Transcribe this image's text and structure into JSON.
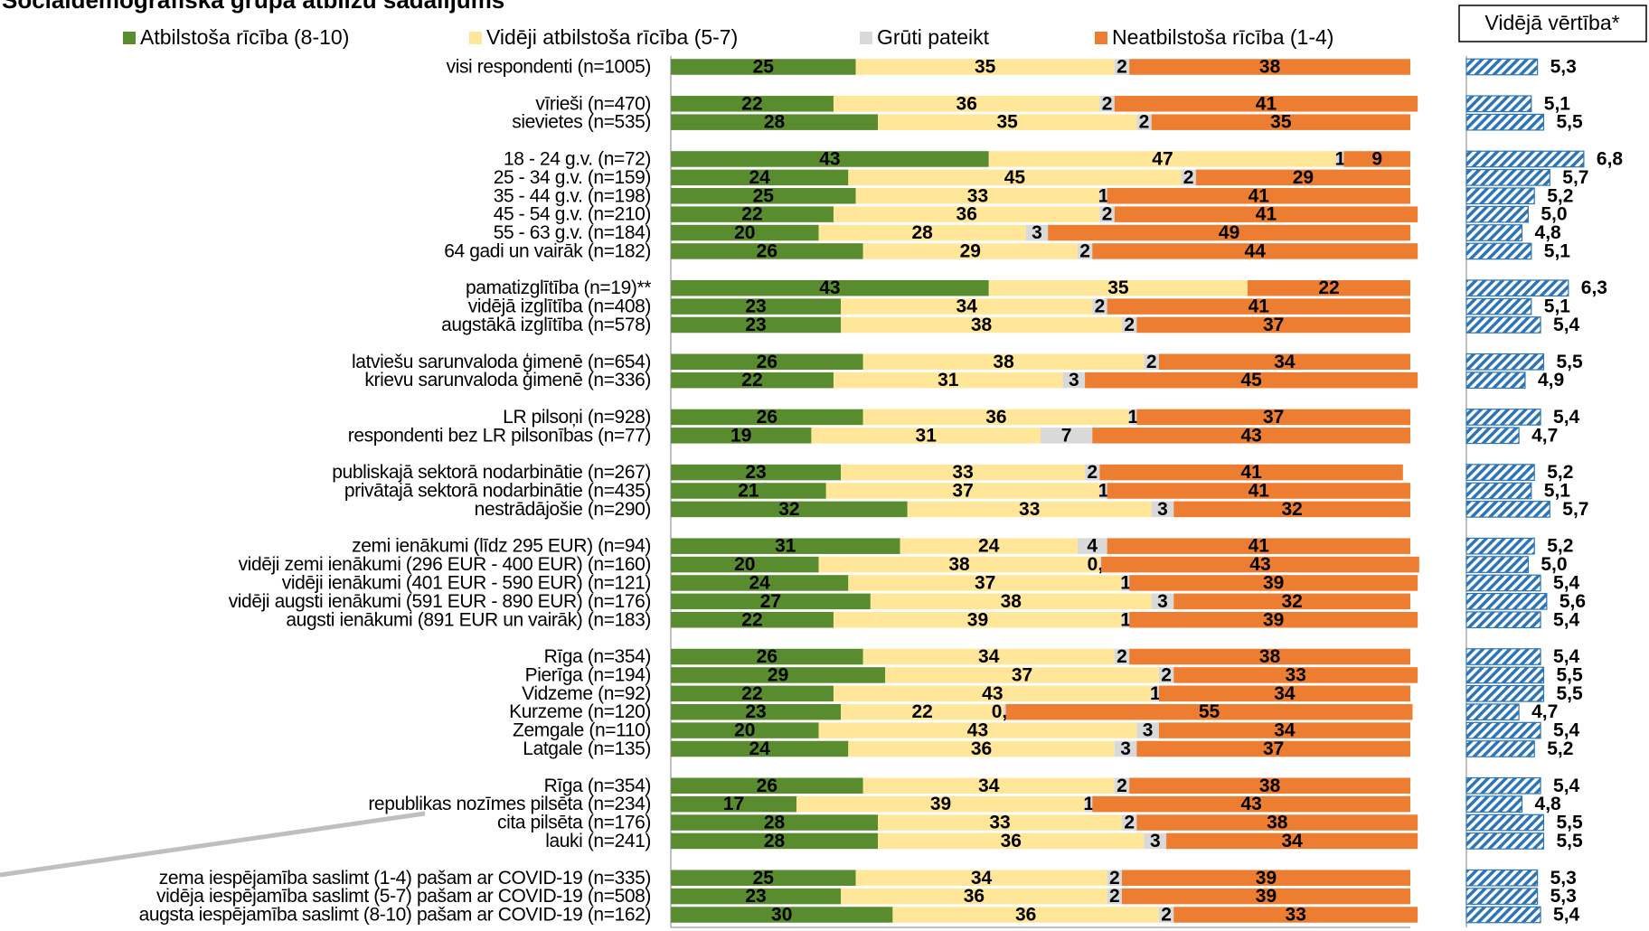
{
  "chart_data": [
    {
      "type": "stacked-bar",
      "orientation": "horizontal",
      "title": "Sociāldemogrāfiskā grupā atbilžu sadalījums",
      "categories": [
        "visi respondenti (n=1005)",
        null,
        "vīrieši (n=470)",
        "sievietes (n=535)",
        null,
        "18 - 24 g.v. (n=72)",
        "25 - 34 g.v. (n=159)",
        "35 - 44 g.v. (n=198)",
        "45 - 54 g.v. (n=210)",
        "55 - 63 g.v. (n=184)",
        "64 gadi un vairāk (n=182)",
        null,
        "pamatizglītība (n=19)**",
        "vidējā izglītība (n=408)",
        "augstākā izglītība (n=578)",
        null,
        "latviešu sarunvaloda ģimenē (n=654)",
        "krievu sarunvaloda ģimenē (n=336)",
        null,
        "LR pilsoņi (n=928)",
        "respondenti bez LR pilsonības (n=77)",
        null,
        "publiskajā sektorā nodarbinātie (n=267)",
        "privātajā sektorā nodarbinātie (n=435)",
        "nestrādājošie (n=290)",
        null,
        "zemi ienākumi (līdz 295 EUR) (n=94)",
        "vidēji zemi ienākumi (296 EUR - 400 EUR) (n=160)",
        "vidēji ienākumi (401 EUR - 590 EUR) (n=121)",
        "vidēji augsti ienākumi (591 EUR - 890 EUR) (n=176)",
        "augsti ienākumi (891 EUR un vairāk) (n=183)",
        null,
        "Rīga (n=354)",
        "Pierīga (n=194)",
        "Vidzeme (n=92)",
        "Kurzeme (n=120)",
        "Zemgale (n=110)",
        "Latgale (n=135)",
        null,
        "Rīga (n=354)",
        "republikas nozīmes pilsēta (n=234)",
        "cita pilsēta (n=176)",
        "lauki (n=241)",
        null,
        "zema iespējamība saslimt (1-4) pašam ar COVID-19 (n=335)",
        "vidēja iespējamība saslimt (5-7) pašam ar COVID-19 (n=508)",
        "augsta iespējamība saslimt (8-10) pašam ar COVID-19 (n=162)"
      ],
      "xlim": [
        0,
        100
      ],
      "series": [
        {
          "name": "Atbilstoša rīcība (8-10)",
          "color": "#588c2e",
          "label_color": "#ffffff",
          "values": [
            25,
            null,
            22,
            28,
            null,
            43,
            24,
            25,
            22,
            20,
            26,
            null,
            43,
            23,
            23,
            null,
            26,
            22,
            null,
            26,
            19,
            null,
            23,
            21,
            32,
            null,
            31,
            20,
            24,
            27,
            22,
            null,
            26,
            29,
            22,
            23,
            20,
            24,
            null,
            26,
            17,
            28,
            28,
            null,
            25,
            23,
            30
          ]
        },
        {
          "name": "Vidēji atbilstoša rīcība (5-7)",
          "color": "#ffe699",
          "label_color": "#000000",
          "values": [
            35,
            null,
            36,
            35,
            null,
            47,
            45,
            33,
            36,
            28,
            29,
            null,
            35,
            34,
            38,
            null,
            38,
            31,
            null,
            36,
            31,
            null,
            33,
            37,
            33,
            null,
            24,
            38,
            37,
            38,
            39,
            null,
            34,
            37,
            43,
            22,
            43,
            36,
            null,
            34,
            39,
            33,
            36,
            null,
            34,
            36,
            36
          ]
        },
        {
          "name": "Grūti pateikt",
          "color": "#d9d9d9",
          "label_color": "#000000",
          "values": [
            2,
            null,
            2,
            2,
            null,
            1,
            2,
            1,
            2,
            3,
            2,
            null,
            null,
            2,
            2,
            null,
            2,
            3,
            null,
            1,
            7,
            null,
            2,
            1,
            3,
            null,
            4,
            0.2,
            1,
            3,
            1,
            null,
            2,
            2,
            1,
            0.3,
            3,
            3,
            null,
            2,
            1,
            2,
            3,
            null,
            2,
            2,
            2
          ],
          "value_labels": [
            "2",
            null,
            "2",
            "2",
            null,
            "1",
            "2",
            "1",
            "2",
            "3",
            "2",
            null,
            null,
            "2",
            "2",
            null,
            "2",
            "3",
            null,
            "1",
            "7",
            null,
            "2",
            "1",
            "3",
            null,
            "4",
            "0,2",
            "1",
            "3",
            "1",
            null,
            "2",
            "2",
            "1",
            "0,3",
            "3",
            "3",
            null,
            "2",
            "1",
            "2",
            "3",
            null,
            "2",
            "2",
            "2"
          ]
        },
        {
          "name": "Neatbilstoša rīcība (1-4)",
          "color": "#ed7d31",
          "label_color": "#000000",
          "values": [
            38,
            null,
            41,
            35,
            null,
            9,
            29,
            41,
            41,
            49,
            44,
            null,
            22,
            41,
            37,
            null,
            34,
            45,
            null,
            37,
            43,
            null,
            41,
            41,
            32,
            null,
            41,
            43,
            39,
            32,
            39,
            null,
            38,
            33,
            34,
            55,
            34,
            37,
            null,
            38,
            43,
            38,
            34,
            null,
            39,
            39,
            33
          ]
        }
      ]
    },
    {
      "type": "bar",
      "orientation": "horizontal",
      "title": "Vidējā vērtība*",
      "color": "#2e75b6",
      "hatch": true,
      "xlim": [
        3,
        8.5
      ],
      "values": [
        5.3,
        null,
        5.1,
        5.5,
        null,
        6.8,
        5.7,
        5.2,
        5.0,
        4.8,
        5.1,
        null,
        6.3,
        5.1,
        5.4,
        null,
        5.5,
        4.9,
        null,
        5.4,
        4.7,
        null,
        5.2,
        5.1,
        5.7,
        null,
        5.2,
        5.0,
        5.4,
        5.6,
        5.4,
        null,
        5.4,
        5.5,
        5.5,
        4.7,
        5.4,
        5.2,
        null,
        5.4,
        4.8,
        5.5,
        5.5,
        null,
        5.3,
        5.3,
        5.4
      ],
      "value_labels": [
        "5,3",
        null,
        "5,1",
        "5,5",
        null,
        "6,8",
        "5,7",
        "5,2",
        "5,0",
        "4,8",
        "5,1",
        null,
        "6,3",
        "5,1",
        "5,4",
        null,
        "5,5",
        "4,9",
        null,
        "5,4",
        "4,7",
        null,
        "5,2",
        "5,1",
        "5,7",
        null,
        "5,2",
        "5,0",
        "5,4",
        "5,6",
        "5,4",
        null,
        "5,4",
        "5,5",
        "5,5",
        "4,7",
        "5,4",
        "5,2",
        null,
        "5,4",
        "4,8",
        "5,5",
        "5,5",
        null,
        "5,3",
        "5,3",
        "5,4"
      ]
    }
  ]
}
